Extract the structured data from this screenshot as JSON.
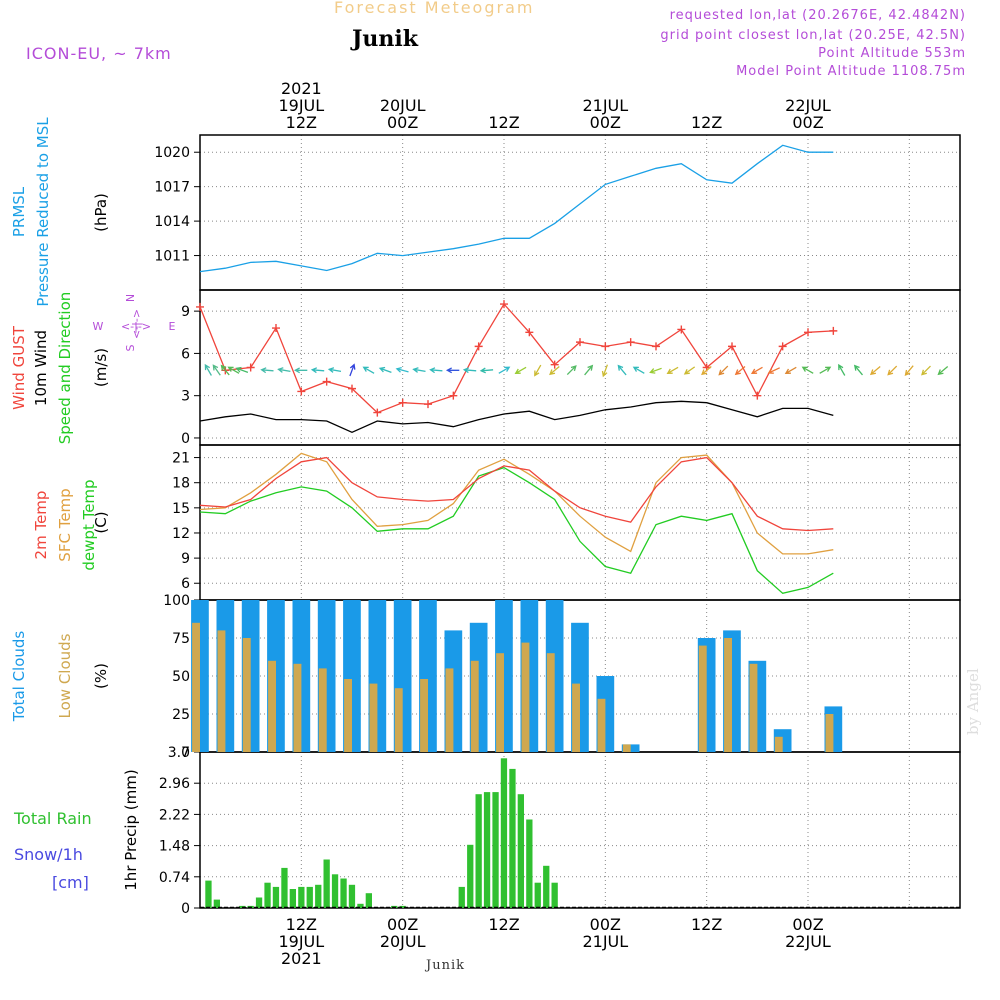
{
  "header": {
    "title": "Forecast Meteogram",
    "location": "Junik",
    "model": "ICON-EU, ~ 7km",
    "requested": "requested lon,lat (20.2676E, 42.4842N)",
    "grid_point": "grid point closest lon,lat (20.25E, 42.5N)",
    "point_altitude": "Point Altitude 553m",
    "model_altitude": "Model Point Altitude 1108.75m",
    "credit": "by Angel",
    "footer_location": "Junik"
  },
  "colors": {
    "pressure": "#1aa0e6",
    "gust": "#f0453c",
    "wind": "#000000",
    "temp2m": "#f0453c",
    "sfc": "#e0a040",
    "dewpt": "#22cc22",
    "total_clouds": "#1a9ae8",
    "low_clouds": "#cfa850",
    "rain": "#30c030",
    "snow": "#4a4ae0",
    "label_purple": "#b44cd8"
  },
  "chart_data": [
    {
      "type": "line",
      "panel": "pressure",
      "y_label_lines": [
        "PRMSL",
        "Pressure Reduced to MSL"
      ],
      "unit_label": "(hPa)",
      "ylim": [
        1008,
        1021.5
      ],
      "yticks": [
        "1011",
        "1014",
        "1017",
        "1020"
      ],
      "ytick_values": [
        1011,
        1014,
        1017,
        1020
      ],
      "x_hours": [
        0,
        3,
        6,
        9,
        12,
        15,
        18,
        21,
        24,
        27,
        30,
        33,
        36,
        39,
        42,
        45,
        48,
        51,
        54,
        57,
        60,
        63,
        66,
        69,
        72,
        75
      ],
      "series": [
        {
          "values": [
            1009.6,
            1009.9,
            1010.4,
            1010.5,
            1010.1,
            1009.7,
            1010.3,
            1011.2,
            1011.0,
            1011.3,
            1011.6,
            1012.0,
            1012.5,
            1012.5,
            1013.8,
            1015.5,
            1017.2,
            1017.9,
            1018.6,
            1019.0,
            1017.6,
            1017.3,
            1019.0,
            1020.6,
            1020.0,
            1020.0
          ]
        }
      ]
    },
    {
      "type": "line",
      "panel": "wind",
      "y_label_lines": [
        "Wind GUST",
        "10m Wind",
        "Speed and Direction"
      ],
      "unit_label": "(m/s)",
      "compass": {
        "n": "N",
        "s": "S",
        "e": "E",
        "w": "W",
        "arrows": "<-|->"
      },
      "ylim": [
        -0.5,
        10.5
      ],
      "yticks": [
        "0",
        "3",
        "6",
        "9"
      ],
      "ytick_values": [
        0,
        3,
        6,
        9
      ],
      "x_hours": [
        0,
        3,
        6,
        9,
        12,
        15,
        18,
        21,
        24,
        27,
        30,
        33,
        36,
        39,
        42,
        45,
        48,
        51,
        54,
        57,
        60,
        63,
        66,
        69,
        72,
        75
      ],
      "series": [
        {
          "key": "gust",
          "values": [
            9.3,
            4.8,
            5.0,
            7.8,
            3.3,
            4.0,
            3.5,
            1.8,
            2.5,
            2.4,
            3.0,
            6.5,
            9.5,
            7.5,
            5.2,
            6.8,
            6.5,
            6.8,
            6.5,
            7.7,
            5.0,
            6.5,
            3.0,
            6.5,
            7.5,
            7.6
          ]
        },
        {
          "key": "wind",
          "values": [
            1.2,
            1.5,
            1.7,
            1.3,
            1.3,
            1.2,
            0.4,
            1.2,
            1.0,
            1.1,
            0.8,
            1.3,
            1.7,
            1.9,
            1.3,
            1.6,
            2.0,
            2.2,
            2.5,
            2.6,
            2.5,
            2.0,
            1.5,
            2.1,
            2.1,
            1.6
          ]
        }
      ],
      "arrows": [
        {
          "h": 1,
          "dir": 330,
          "c": "#44bbaa"
        },
        {
          "h": 2,
          "dir": 325,
          "c": "#55bb88"
        },
        {
          "h": 3,
          "dir": 320,
          "c": "#55bb55"
        },
        {
          "h": 4,
          "dir": 300,
          "c": "#55bb55"
        },
        {
          "h": 5,
          "dir": 290,
          "c": "#44bb66"
        },
        {
          "h": 8,
          "dir": 275,
          "c": "#44bbaa"
        },
        {
          "h": 10,
          "dir": 280,
          "c": "#44bbaa"
        },
        {
          "h": 12,
          "dir": 270,
          "c": "#44bbaa"
        },
        {
          "h": 14,
          "dir": 275,
          "c": "#33bbbb"
        },
        {
          "h": 16,
          "dir": 280,
          "c": "#33bbbb"
        },
        {
          "h": 18,
          "dir": 20,
          "c": "#3344dd"
        },
        {
          "h": 20,
          "dir": 300,
          "c": "#33bbbb"
        },
        {
          "h": 22,
          "dir": 290,
          "c": "#33bbbb"
        },
        {
          "h": 24,
          "dir": 285,
          "c": "#33bbcc"
        },
        {
          "h": 26,
          "dir": 280,
          "c": "#33bbbb"
        },
        {
          "h": 28,
          "dir": 275,
          "c": "#33bbbb"
        },
        {
          "h": 30,
          "dir": 270,
          "c": "#3355dd"
        },
        {
          "h": 32,
          "dir": 275,
          "c": "#33bbbb"
        },
        {
          "h": 34,
          "dir": 265,
          "c": "#33bbaa"
        },
        {
          "h": 36,
          "dir": 60,
          "c": "#33bbcc"
        },
        {
          "h": 38,
          "dir": 240,
          "c": "#99cc33"
        },
        {
          "h": 40,
          "dir": 210,
          "c": "#ccbb33"
        },
        {
          "h": 42,
          "dir": 230,
          "c": "#ccbb33"
        },
        {
          "h": 44,
          "dir": 45,
          "c": "#55bb66"
        },
        {
          "h": 46,
          "dir": 40,
          "c": "#55bb66"
        },
        {
          "h": 48,
          "dir": 200,
          "c": "#ccbb33"
        },
        {
          "h": 50,
          "dir": 320,
          "c": "#33bbbb"
        },
        {
          "h": 52,
          "dir": 300,
          "c": "#33bbbb"
        },
        {
          "h": 54,
          "dir": 250,
          "c": "#99cc33"
        },
        {
          "h": 56,
          "dir": 240,
          "c": "#ccbb33"
        },
        {
          "h": 58,
          "dir": 235,
          "c": "#ccbb33"
        },
        {
          "h": 60,
          "dir": 230,
          "c": "#ddaa33"
        },
        {
          "h": 62,
          "dir": 225,
          "c": "#dd8833"
        },
        {
          "h": 64,
          "dir": 230,
          "c": "#ee7733"
        },
        {
          "h": 66,
          "dir": 240,
          "c": "#ee7733"
        },
        {
          "h": 68,
          "dir": 245,
          "c": "#ee7733"
        },
        {
          "h": 70,
          "dir": 240,
          "c": "#dd8833"
        },
        {
          "h": 72,
          "dir": 300,
          "c": "#55bb55"
        },
        {
          "h": 74,
          "dir": 60,
          "c": "#55bb55"
        },
        {
          "h": 76,
          "dir": 330,
          "c": "#44bb66"
        },
        {
          "h": 78,
          "dir": 320,
          "c": "#44bb66"
        },
        {
          "h": 80,
          "dir": 230,
          "c": "#ddaa33"
        },
        {
          "h": 82,
          "dir": 225,
          "c": "#ddaa33"
        },
        {
          "h": 84,
          "dir": 220,
          "c": "#ddaa33"
        },
        {
          "h": 86,
          "dir": 225,
          "c": "#ccbb33"
        },
        {
          "h": 88,
          "dir": 230,
          "c": "#55bb55"
        }
      ]
    },
    {
      "type": "line",
      "panel": "temperature",
      "y_label_lines": [
        "2m Temp",
        "SFC Temp",
        "dewpt Temp"
      ],
      "unit_label": "(C)",
      "ylim": [
        4,
        22.5
      ],
      "yticks": [
        "6",
        "9",
        "12",
        "15",
        "18",
        "21"
      ],
      "ytick_values": [
        6,
        9,
        12,
        15,
        18,
        21
      ],
      "x_hours": [
        0,
        3,
        6,
        9,
        12,
        15,
        18,
        21,
        24,
        27,
        30,
        33,
        36,
        39,
        42,
        45,
        48,
        51,
        54,
        57,
        60,
        63,
        66,
        69,
        72,
        75
      ],
      "series": [
        {
          "key": "temp2m",
          "values": [
            15.3,
            15.1,
            16.0,
            18.5,
            20.5,
            21.0,
            18.0,
            16.3,
            16.0,
            15.8,
            16.0,
            18.5,
            20.0,
            19.5,
            17.0,
            15.0,
            14.0,
            13.3,
            17.5,
            20.5,
            21.0,
            18.0,
            14.0,
            12.5,
            12.3,
            12.5
          ]
        },
        {
          "key": "sfc",
          "values": [
            14.8,
            15.0,
            16.8,
            19.0,
            21.5,
            20.5,
            16.0,
            12.8,
            13.0,
            13.5,
            15.5,
            19.5,
            20.8,
            19.0,
            17.0,
            14.0,
            11.5,
            9.8,
            18.0,
            21.0,
            21.3,
            18.0,
            12.0,
            9.5,
            9.5,
            10.0
          ]
        },
        {
          "key": "dewpt",
          "values": [
            14.5,
            14.3,
            15.8,
            16.8,
            17.5,
            17.0,
            15.0,
            12.2,
            12.5,
            12.5,
            14.0,
            18.8,
            19.8,
            18.0,
            16.0,
            11.0,
            8.0,
            7.2,
            13.0,
            14.0,
            13.5,
            14.3,
            7.5,
            4.8,
            5.5,
            7.2
          ]
        }
      ]
    },
    {
      "type": "bar",
      "panel": "clouds",
      "y_label_lines": [
        "Total Clouds",
        "Low Clouds"
      ],
      "unit_label": "(%)",
      "ylim": [
        0,
        100
      ],
      "yticks": [
        "0",
        "25",
        "50",
        "75",
        "100"
      ],
      "ytick_values": [
        0,
        25,
        50,
        75,
        100
      ],
      "x_hours": [
        0,
        3,
        6,
        9,
        12,
        15,
        18,
        21,
        24,
        27,
        30,
        33,
        36,
        39,
        42,
        45,
        48,
        51,
        54,
        57,
        60,
        63,
        66,
        69,
        72,
        75
      ],
      "series": [
        {
          "key": "total",
          "values": [
            100,
            100,
            100,
            100,
            100,
            100,
            100,
            100,
            100,
            100,
            80,
            85,
            100,
            100,
            100,
            85,
            50,
            5,
            0,
            0,
            75,
            80,
            60,
            15,
            0,
            30
          ]
        },
        {
          "key": "low",
          "values": [
            85,
            80,
            75,
            60,
            58,
            55,
            48,
            45,
            42,
            48,
            55,
            60,
            65,
            72,
            65,
            45,
            35,
            5,
            0,
            0,
            70,
            75,
            58,
            10,
            0,
            25
          ]
        }
      ]
    },
    {
      "type": "bar",
      "panel": "precip",
      "y_label_lines": [
        "Total  Rain",
        "Snow/1h",
        "[cm]"
      ],
      "unit_label": "1hr Precip (mm)",
      "ylim": [
        0,
        3.7
      ],
      "yticks": [
        "0",
        "0.74",
        "1.48",
        "2.22",
        "2.96",
        "3.7"
      ],
      "ytick_values": [
        0,
        0.74,
        1.48,
        2.22,
        2.96,
        3.7
      ],
      "x_hours": [
        1,
        2,
        5,
        6,
        7,
        8,
        9,
        10,
        11,
        12,
        13,
        14,
        15,
        16,
        17,
        18,
        19,
        20,
        23,
        24,
        31,
        32,
        33,
        34,
        35,
        36,
        37,
        38,
        39,
        40,
        41,
        42,
        43
      ],
      "series": [
        {
          "key": "rain",
          "values": [
            0.65,
            0.2,
            0.05,
            0.05,
            0.25,
            0.6,
            0.5,
            0.95,
            0.45,
            0.5,
            0.5,
            0.55,
            1.15,
            0.8,
            0.7,
            0.55,
            0.1,
            0.35,
            0.05,
            0.05,
            0.5,
            1.5,
            2.7,
            2.75,
            2.75,
            3.55,
            3.3,
            2.7,
            2.1,
            0.6,
            1.0,
            0.6,
            0.0
          ]
        },
        {
          "key": "snow",
          "values": [
            0,
            0,
            0,
            0,
            0,
            0,
            0,
            0,
            0,
            0,
            0,
            0,
            0,
            0,
            0,
            0,
            0,
            0,
            0,
            0,
            0,
            0,
            0,
            0,
            0,
            0,
            0,
            0,
            0,
            0,
            0,
            0,
            0
          ]
        }
      ]
    },
    {
      "type": "table",
      "panel": "time_axis",
      "top_ticks": [
        {
          "h": 12,
          "lines": [
            "2021",
            "19JUL",
            "12Z"
          ]
        },
        {
          "h": 24,
          "lines": [
            "20JUL",
            "00Z"
          ]
        },
        {
          "h": 36,
          "lines": [
            "12Z"
          ]
        },
        {
          "h": 48,
          "lines": [
            "21JUL",
            "00Z"
          ]
        },
        {
          "h": 60,
          "lines": [
            "12Z"
          ]
        },
        {
          "h": 72,
          "lines": [
            "22JUL",
            "00Z"
          ]
        }
      ],
      "bottom_ticks": [
        {
          "h": 12,
          "lines": [
            "12Z",
            "19JUL",
            "2021"
          ]
        },
        {
          "h": 24,
          "lines": [
            "00Z",
            "20JUL"
          ]
        },
        {
          "h": 36,
          "lines": [
            "12Z"
          ]
        },
        {
          "h": 48,
          "lines": [
            "00Z",
            "21JUL"
          ]
        },
        {
          "h": 60,
          "lines": [
            "12Z"
          ]
        },
        {
          "h": 72,
          "lines": [
            "00Z",
            "22JUL"
          ]
        }
      ]
    }
  ]
}
